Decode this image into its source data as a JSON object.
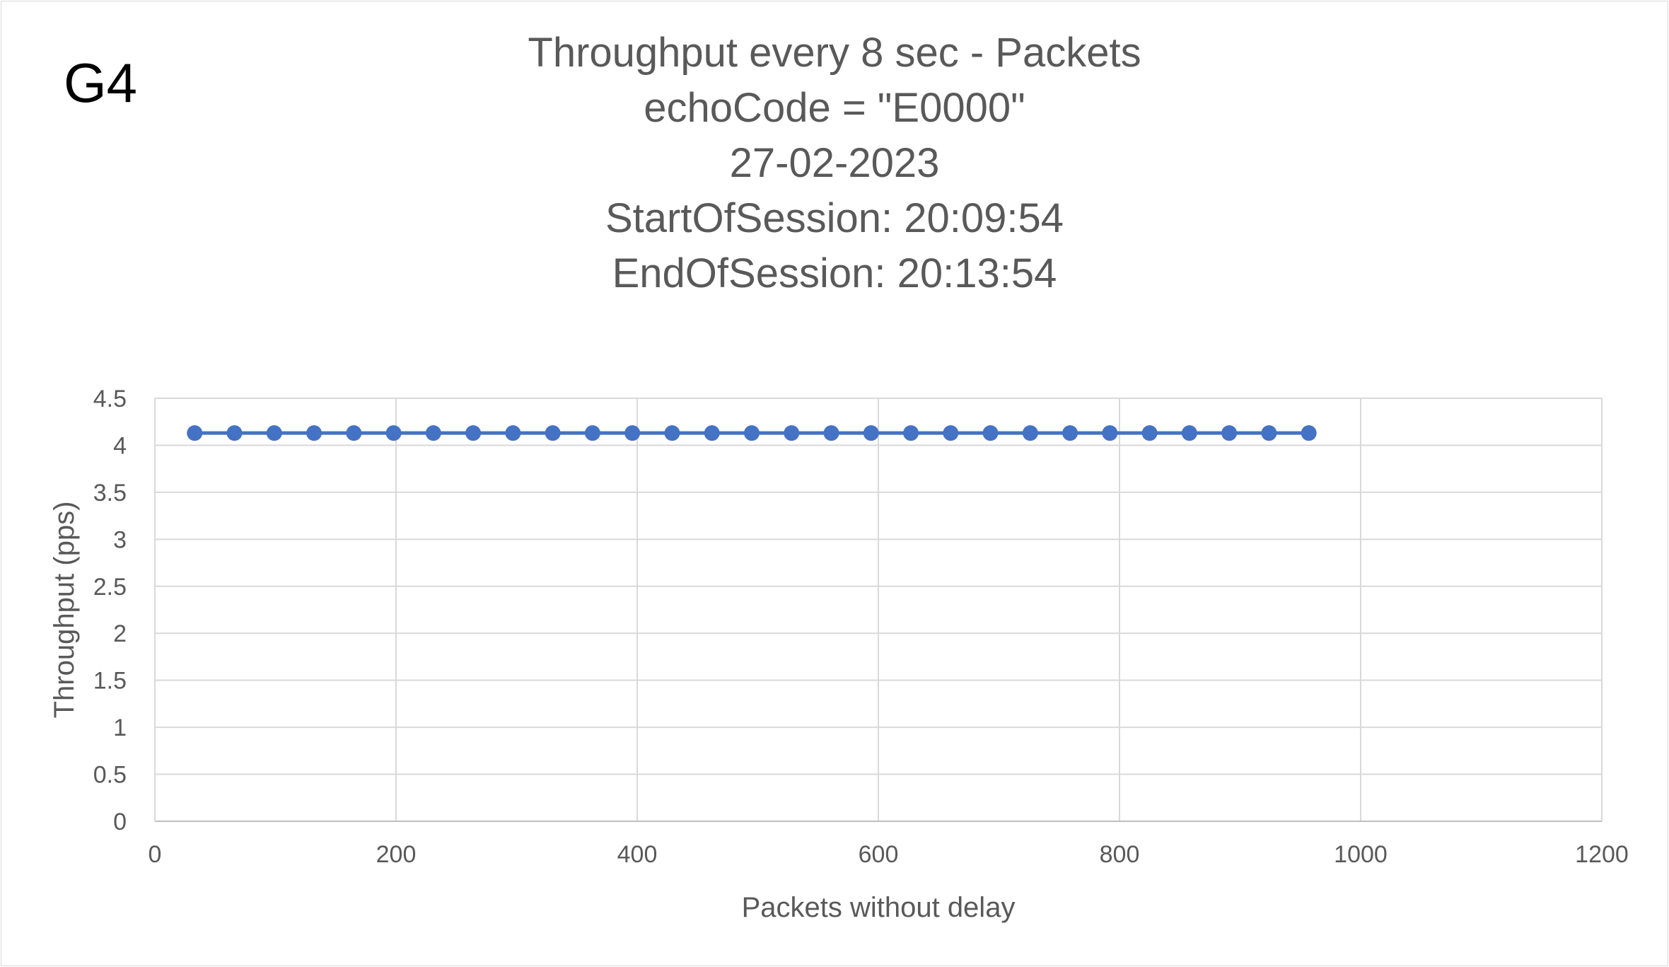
{
  "panel_label": "G4",
  "chart_data": {
    "type": "scatter",
    "title_lines": [
      "Throughput every 8 sec - Packets",
      "echoCode = \"E0000\"",
      "27-02-2023",
      "StartOfSession: 20:09:54",
      "EndOfSession: 20:13:54"
    ],
    "xlabel": "Packets without delay",
    "ylabel": "Throughput (pps)",
    "xlim": [
      0,
      1200
    ],
    "ylim": [
      0,
      4.5
    ],
    "x_ticks": [
      "0",
      "200",
      "400",
      "600",
      "800",
      "1000",
      "1200"
    ],
    "y_ticks": [
      "0",
      "0.5",
      "1",
      "1.5",
      "2",
      "2.5",
      "3",
      "3.5",
      "4",
      "4.5"
    ],
    "grid": true,
    "markers": "circle",
    "lines_connected": true,
    "series_color": "#4472c4",
    "series": [
      {
        "x": [
          33,
          66,
          99,
          132,
          165,
          198,
          231,
          264,
          297,
          330,
          363,
          396,
          429,
          462,
          495,
          528,
          561,
          594,
          627,
          660,
          693,
          726,
          759,
          792,
          825,
          858,
          891,
          924,
          957
        ],
        "y": [
          4.13,
          4.13,
          4.13,
          4.13,
          4.13,
          4.13,
          4.13,
          4.13,
          4.13,
          4.13,
          4.13,
          4.13,
          4.13,
          4.13,
          4.13,
          4.13,
          4.13,
          4.13,
          4.13,
          4.13,
          4.13,
          4.13,
          4.13,
          4.13,
          4.13,
          4.13,
          4.13,
          4.13,
          4.13
        ]
      }
    ]
  }
}
